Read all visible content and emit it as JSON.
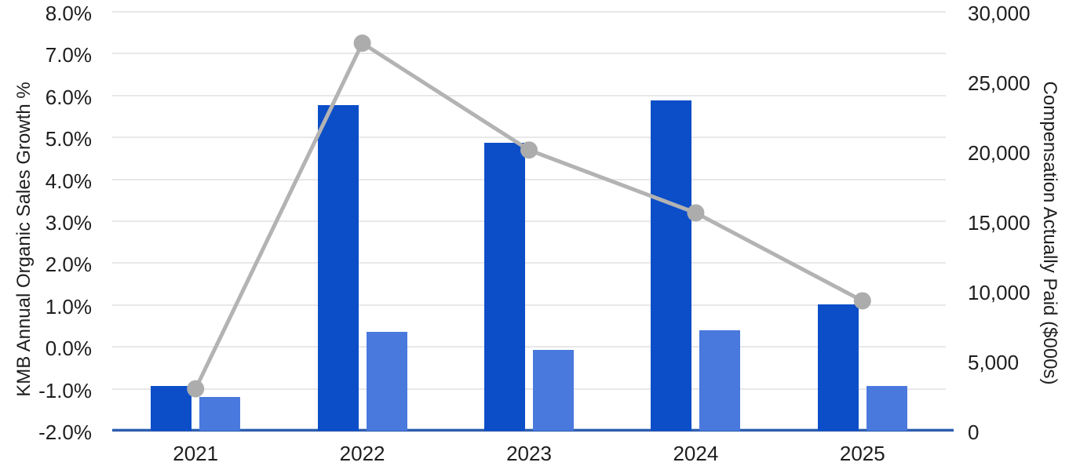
{
  "chart_data": {
    "type": "bar",
    "subtype": "combo-bar-line-dual-axis",
    "categories": [
      "2021",
      "2022",
      "2023",
      "2024",
      "2025"
    ],
    "bar_series": [
      {
        "name": "dark-blue-bars",
        "axis": "right",
        "color": "#0b4ec8",
        "values": [
          3200,
          23300,
          20600,
          23650,
          9050
        ]
      },
      {
        "name": "light-blue-bars",
        "axis": "right",
        "color": "#4a79de",
        "values": [
          2400,
          7100,
          5800,
          7200,
          3200
        ]
      }
    ],
    "line_series": [
      {
        "name": "gray-line",
        "axis": "left",
        "color": "#b3b3b3",
        "marker_color": "#acacac",
        "values": [
          -1.0,
          7.25,
          4.7,
          3.2,
          1.1
        ]
      }
    ],
    "left_axis": {
      "title": "KMB Annual Organic Sales Growth %",
      "min": -2,
      "max": 8,
      "tick_step": 1,
      "tick_labels": [
        "8.0%",
        "7.0%",
        "6.0%",
        "5.0%",
        "4.0%",
        "3.0%",
        "2.0%",
        "1.0%",
        "0.0%",
        "-1.0%",
        "-2.0%"
      ]
    },
    "right_axis": {
      "title": "Compensation Actually Paid ($000s)",
      "min": 0,
      "max": 30000,
      "tick_step": 5000,
      "tick_labels": [
        "30,000",
        "25,000",
        "20,000",
        "15,000",
        "10,000",
        "5,000",
        "0"
      ]
    },
    "grid": "horizontal",
    "legend": "none",
    "title": ""
  },
  "colors": {
    "gridline": "#e8e8e8",
    "baseline": "#2f5dad",
    "text": "#1e1e1e",
    "background": "#ffffff"
  }
}
